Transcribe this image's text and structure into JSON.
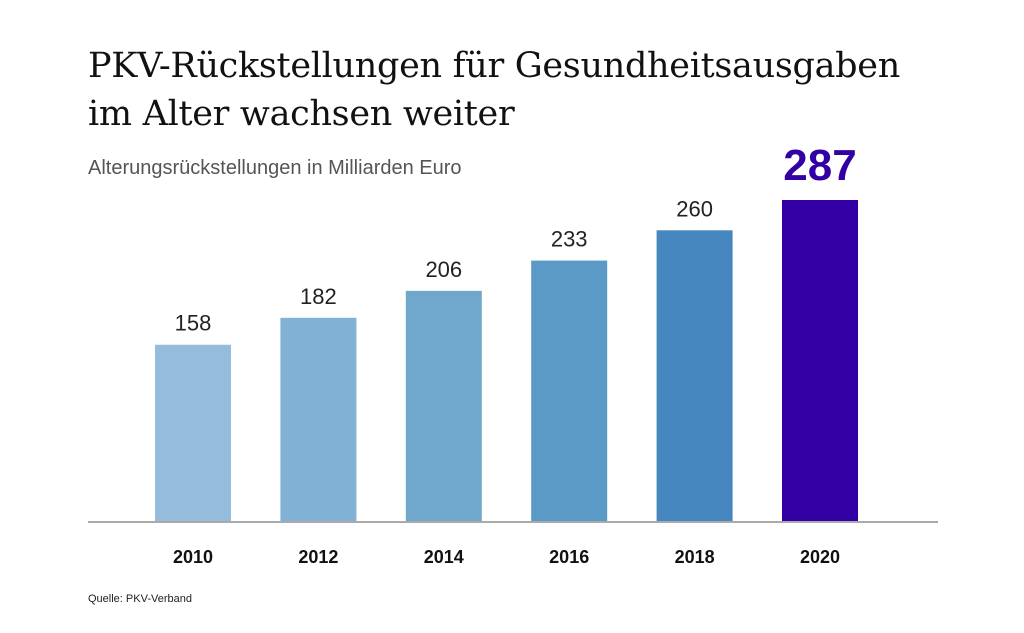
{
  "chart_data": {
    "type": "bar",
    "title": "PKV-Rückstellungen für Gesundheitsausgaben im Alter wachsen weiter",
    "title_lines": [
      "PKV-Rückstellungen für Gesundheitsausgaben",
      "im Alter wachsen weiter"
    ],
    "subtitle": "Alterungsrückstellungen in Milliarden Euro",
    "categories": [
      "2010",
      "2012",
      "2014",
      "2016",
      "2018",
      "2020"
    ],
    "values": [
      158,
      182,
      206,
      233,
      260,
      287
    ],
    "colors": [
      "#94bcdc",
      "#82b1d6",
      "#70a8cc",
      "#5b9ac6",
      "#4787bf",
      "#3300a6"
    ],
    "highlight_index": 5,
    "highlight_color": "#3300a6",
    "xlabel": "",
    "ylabel": "",
    "ylim": [
      0,
      287
    ],
    "grid": false,
    "source": "Quelle: PKV-Verband"
  }
}
